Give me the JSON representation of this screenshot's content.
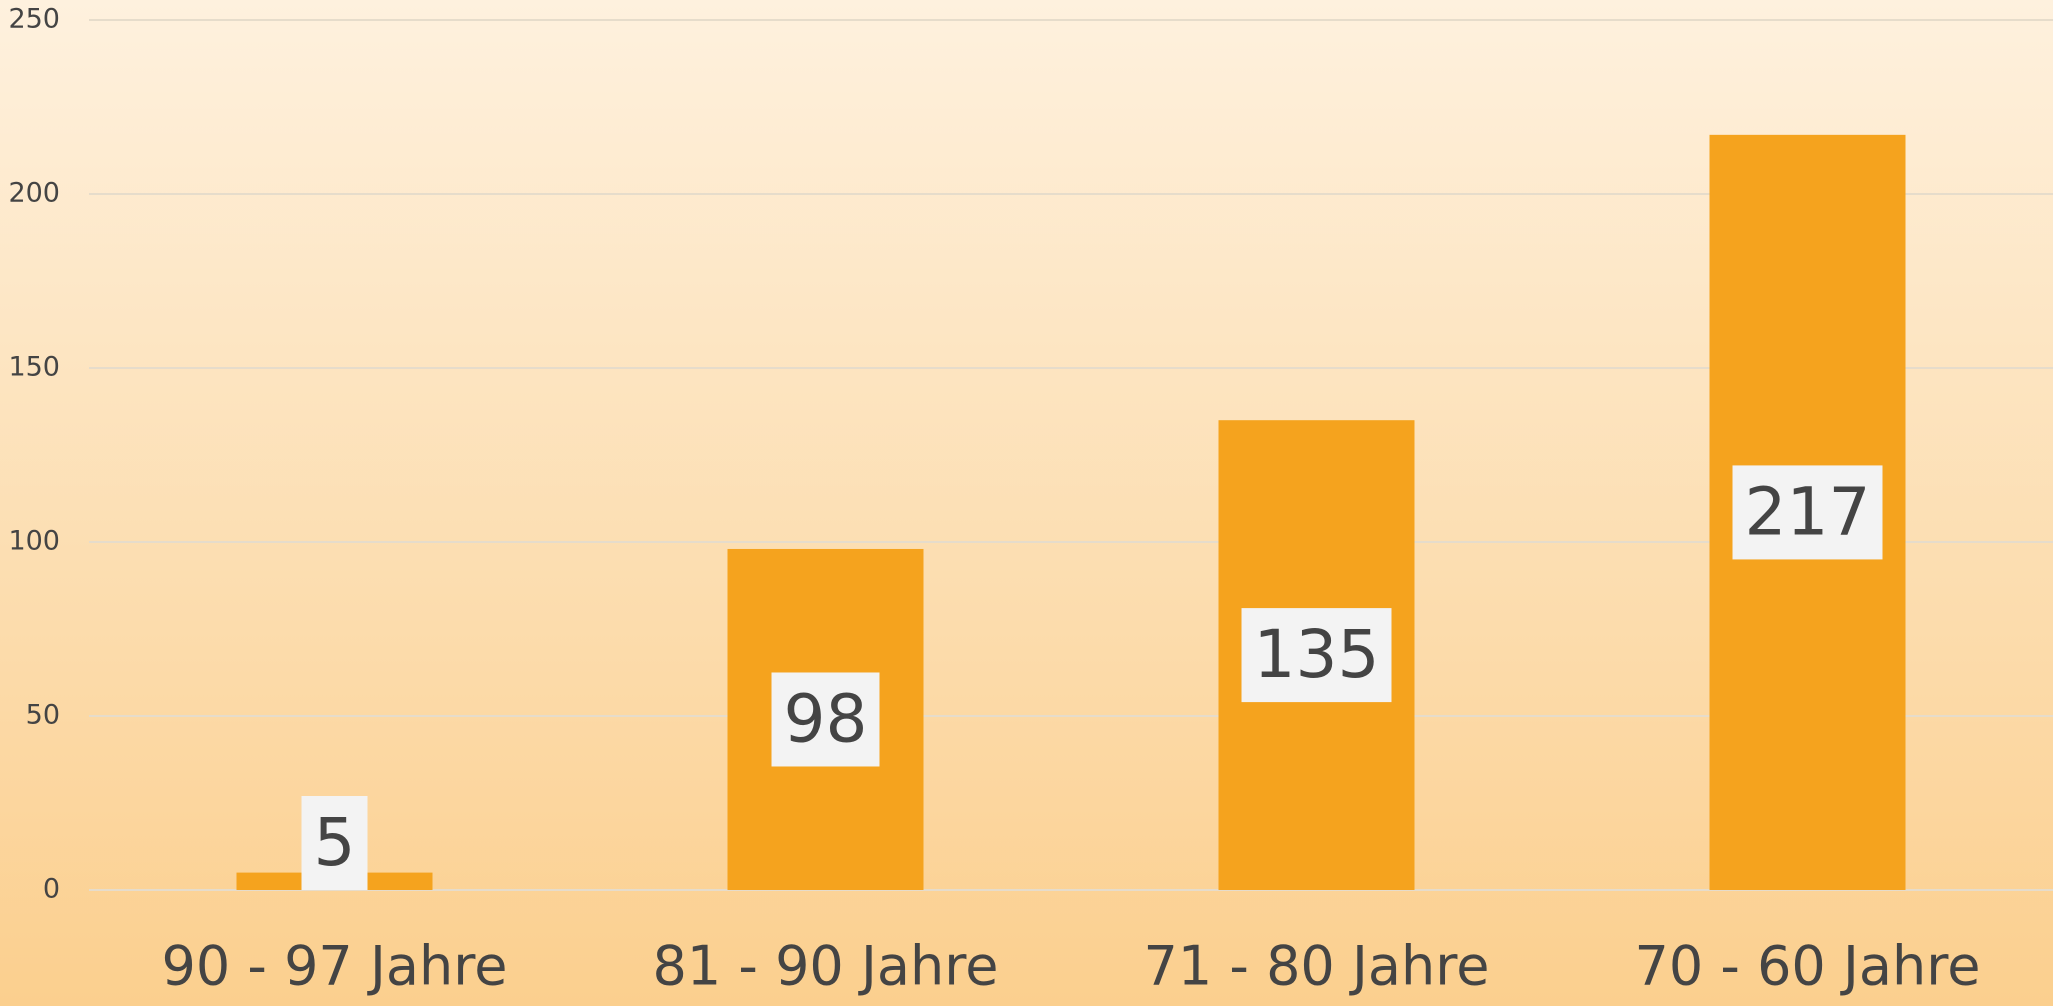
{
  "chart_data": {
    "type": "bar",
    "categories": [
      "90 - 97 Jahre",
      "81 - 90 Jahre",
      "71 - 80 Jahre",
      "70 - 60 Jahre"
    ],
    "values": [
      5,
      98,
      135,
      217
    ],
    "color": "#f5a31e",
    "ylim": [
      0,
      250
    ],
    "yticks": [
      0,
      50,
      100,
      150,
      200,
      250
    ],
    "grid": true
  }
}
